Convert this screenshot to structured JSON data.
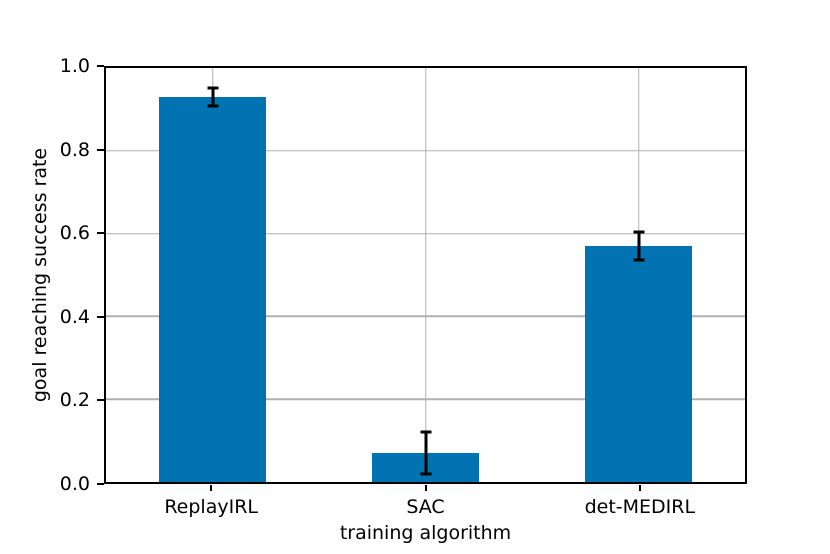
{
  "chart_data": {
    "type": "bar",
    "title": "",
    "xlabel": "training algorithm",
    "ylabel": "goal reaching success rate",
    "categories": [
      "ReplayIRL",
      "SAC",
      "det-MEDIRL"
    ],
    "values": [
      0.93,
      0.07,
      0.57
    ],
    "errors": [
      0.022,
      0.051,
      0.033
    ],
    "ylim": [
      0.0,
      1.0
    ],
    "ytick_labels": [
      "0.0",
      "0.2",
      "0.4",
      "0.6",
      "0.8",
      "1.0"
    ],
    "grid": "both",
    "legend_position": "none",
    "bar_width_fraction": 0.5,
    "colors": {
      "bar": "#0173b2",
      "error_bar": "#000000",
      "grid": "#b0b0b0",
      "spine": "#000000",
      "background": "#ffffff",
      "text": "#000000"
    }
  }
}
